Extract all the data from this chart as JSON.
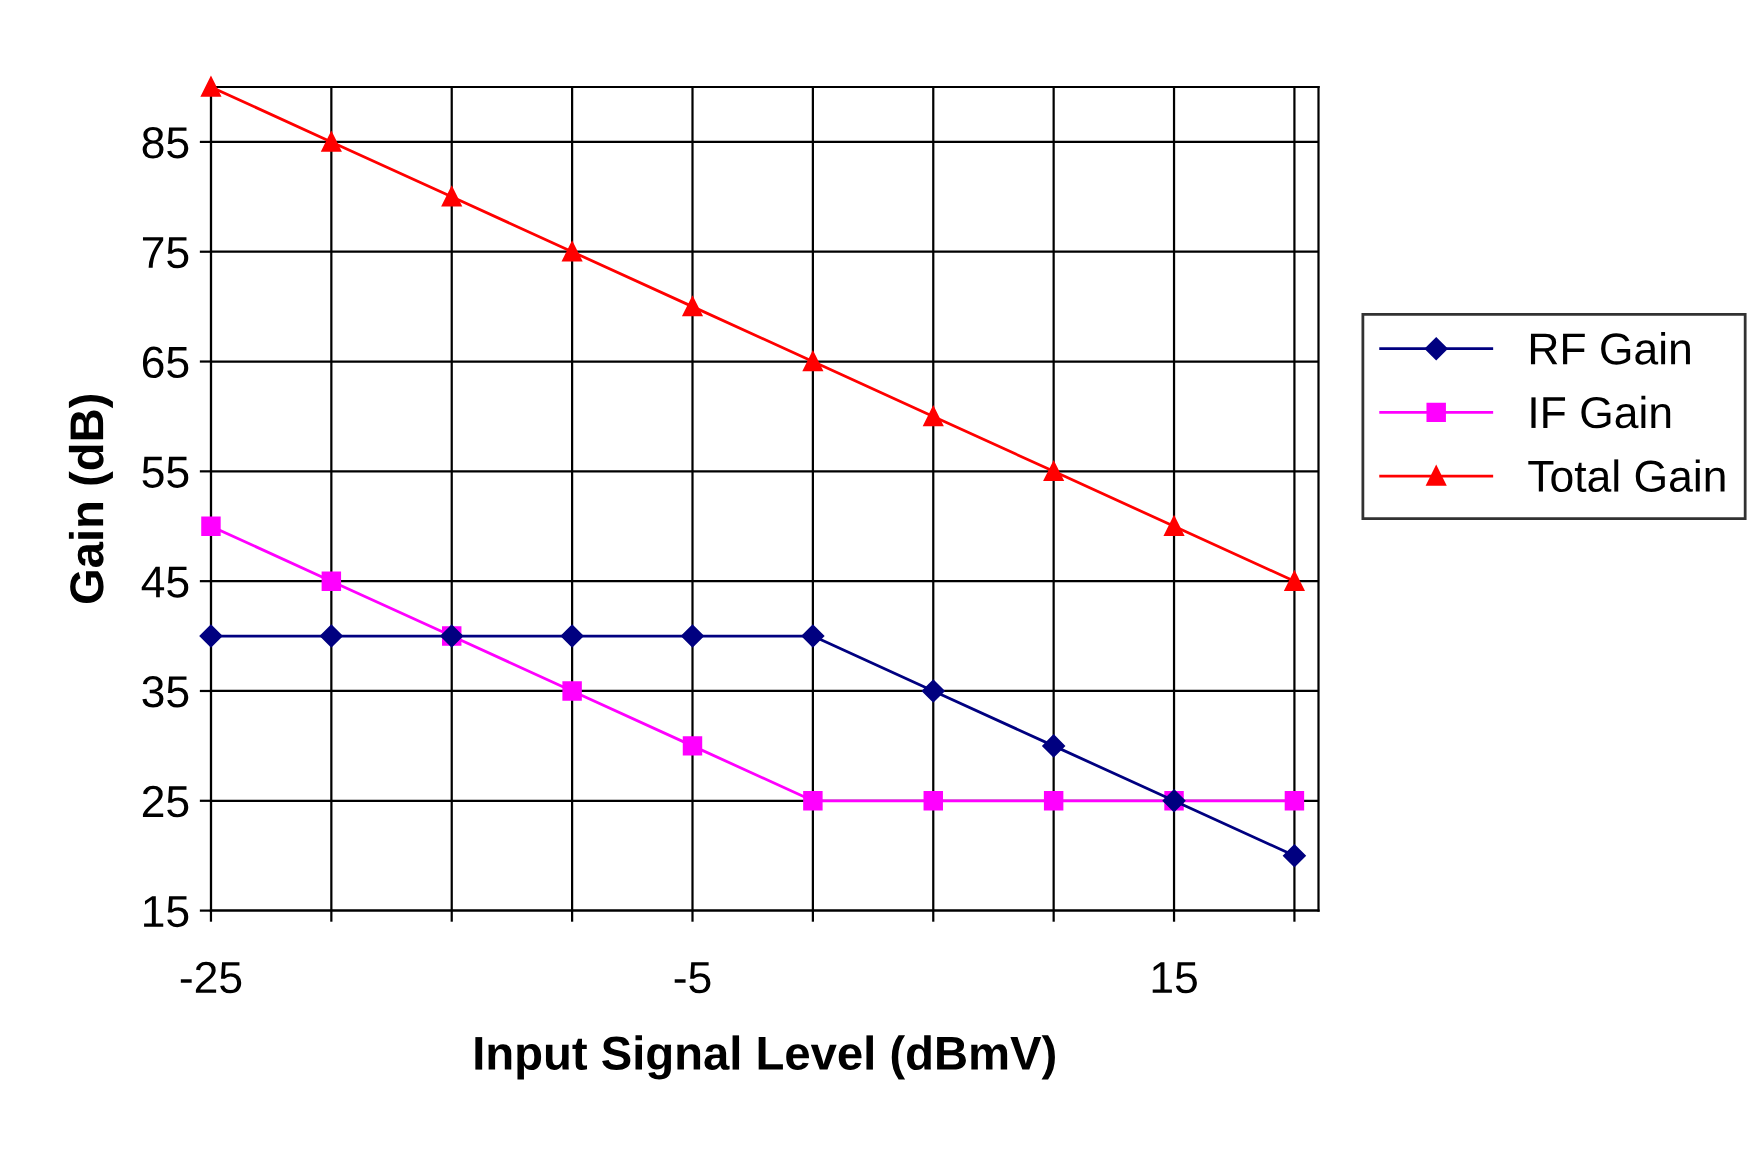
{
  "chart_data": {
    "type": "line",
    "xlabel": "Input Signal Level (dBmV)",
    "ylabel": "Gain (dB)",
    "x": [
      -25,
      -20,
      -15,
      -10,
      -5,
      0,
      5,
      10,
      15,
      20
    ],
    "series": [
      {
        "name": "RF Gain",
        "color": "#000080",
        "marker": "diamond",
        "values": [
          40,
          40,
          40,
          40,
          40,
          40,
          35,
          30,
          25,
          20
        ]
      },
      {
        "name": "IF Gain",
        "color": "#ff00ff",
        "marker": "square",
        "values": [
          50,
          45,
          40,
          35,
          30,
          25,
          25,
          25,
          25,
          25
        ]
      },
      {
        "name": "Total Gain",
        "color": "#ff0000",
        "marker": "triangle",
        "values": [
          90,
          85,
          80,
          75,
          70,
          65,
          60,
          55,
          50,
          45
        ]
      }
    ],
    "xlim": [
      -25,
      21
    ],
    "ylim": [
      15,
      90
    ],
    "xticks": [
      -25,
      {
        "value": -20,
        "label": null
      },
      {
        "value": -15,
        "label": null
      },
      {
        "value": -10,
        "label": null
      },
      -5,
      {
        "value": 0,
        "label": null
      },
      {
        "value": 5,
        "label": null
      },
      {
        "value": 10,
        "label": null
      },
      15,
      {
        "value": 20,
        "label": null
      }
    ],
    "yticks": [
      15,
      25,
      35,
      45,
      55,
      65,
      75,
      85
    ],
    "grid": true,
    "legend": "right",
    "line_style": "solid"
  }
}
